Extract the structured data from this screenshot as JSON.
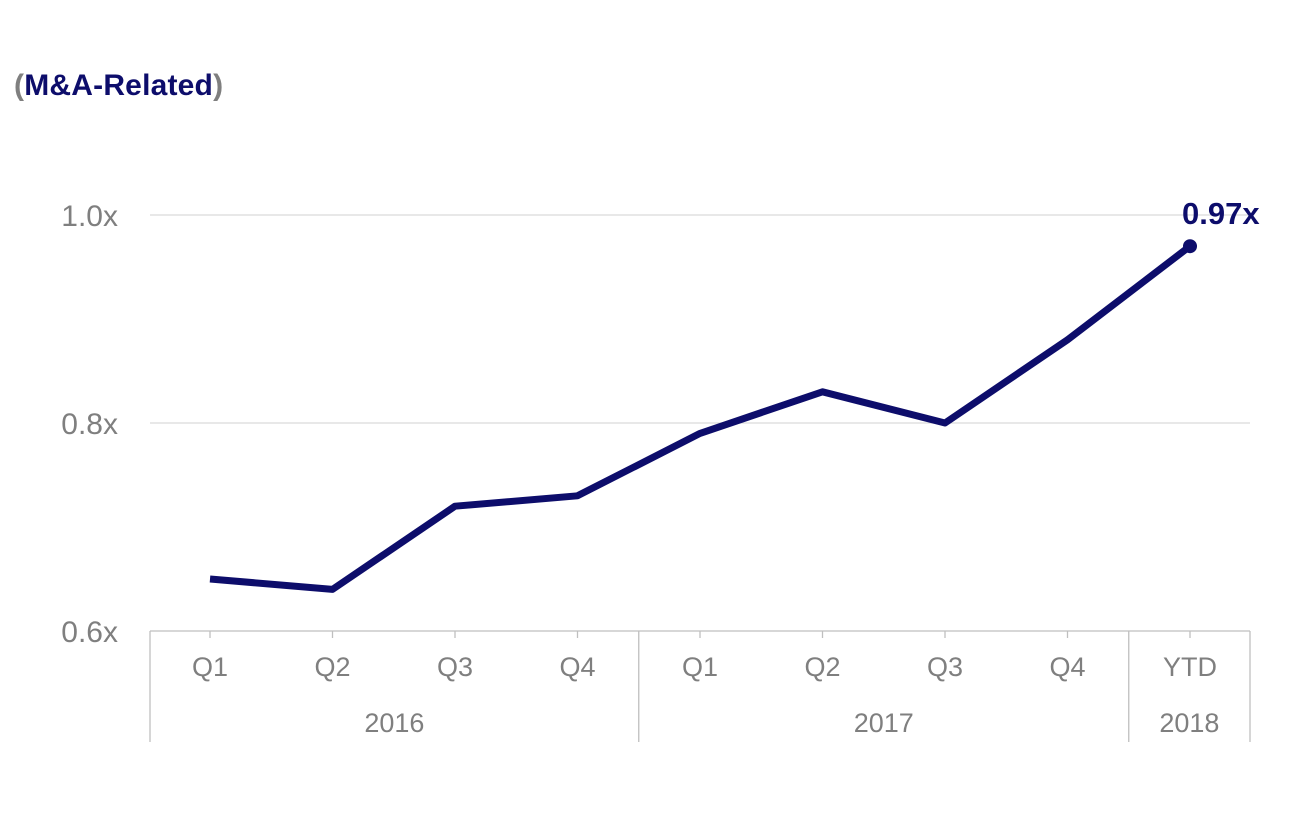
{
  "title": {
    "open_paren": "(",
    "text": "M&A-Related",
    "close_paren": ")"
  },
  "colors": {
    "series": "#0d0d6b",
    "axis_text": "#7f7f7f",
    "grid": "#d9d9d9",
    "axis_line": "#bfbfbf",
    "paren": "#7f7f7f"
  },
  "chart_data": {
    "type": "line",
    "title": "(M&A-Related)",
    "xlabel": "",
    "ylabel": "",
    "categories": [
      "Q1",
      "Q2",
      "Q3",
      "Q4",
      "Q1",
      "Q2",
      "Q3",
      "Q4",
      "YTD"
    ],
    "groups": [
      {
        "label": "2016",
        "span": 4
      },
      {
        "label": "2017",
        "span": 4
      },
      {
        "label": "2018",
        "span": 1
      }
    ],
    "series": [
      {
        "values": [
          0.65,
          0.64,
          0.72,
          0.73,
          0.79,
          0.83,
          0.8,
          0.88,
          0.97
        ],
        "color": "#0d0d6b"
      }
    ],
    "ylim": [
      0.6,
      1.0
    ],
    "yticks": [
      0.6,
      0.8,
      1.0
    ],
    "ytick_labels": [
      "0.6x",
      "0.8x",
      "1.0x"
    ],
    "grid": true,
    "annotations": [
      {
        "index": 8,
        "text": "0.97x"
      }
    ]
  }
}
